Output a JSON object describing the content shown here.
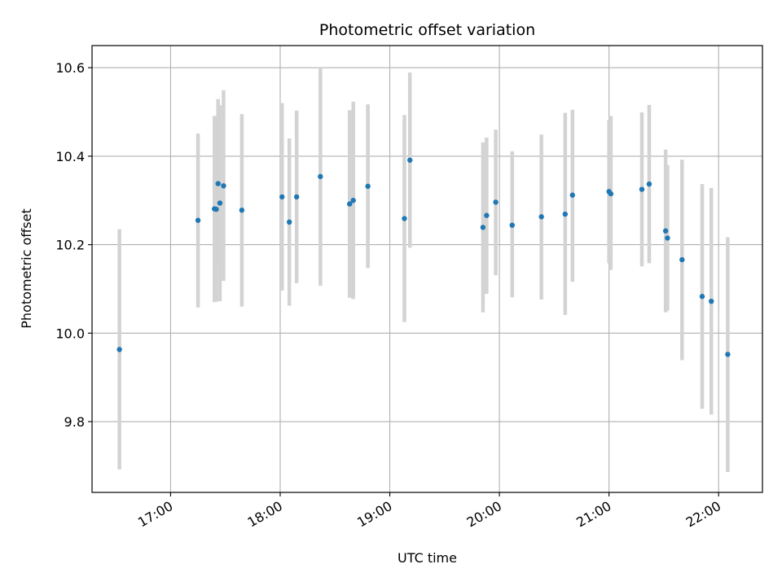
{
  "chart_data": {
    "type": "scatter",
    "title": "Photometric offset variation",
    "xlabel": "UTC time",
    "ylabel": "Photometric offset",
    "xlim": [
      "16:17",
      "22:24"
    ],
    "ylim": [
      9.64,
      10.65
    ],
    "x_ticks": [
      "17:00",
      "18:00",
      "19:00",
      "20:00",
      "21:00",
      "22:00"
    ],
    "y_ticks": [
      9.8,
      10.0,
      10.2,
      10.4,
      10.6
    ],
    "y_tick_labels": [
      "9.8",
      "10.0",
      "10.2",
      "10.4",
      "10.6"
    ],
    "grid": true,
    "point_color": "#1f77b4",
    "errorbar_color": "#d3d3d3",
    "points": [
      {
        "t": "16:32",
        "y": 9.963,
        "low": 9.692,
        "high": 10.235
      },
      {
        "t": "17:15",
        "y": 10.255,
        "low": 10.058,
        "high": 10.451
      },
      {
        "t": "17:24",
        "y": 10.281,
        "low": 10.07,
        "high": 10.491
      },
      {
        "t": "17:25",
        "y": 10.28,
        "low": 10.071,
        "high": 10.489
      },
      {
        "t": "17:26",
        "y": 10.338,
        "low": 10.146,
        "high": 10.529
      },
      {
        "t": "17:27",
        "y": 10.294,
        "low": 10.072,
        "high": 10.515
      },
      {
        "t": "17:29",
        "y": 10.333,
        "low": 10.118,
        "high": 10.549
      },
      {
        "t": "17:39",
        "y": 10.278,
        "low": 10.06,
        "high": 10.495
      },
      {
        "t": "18:01",
        "y": 10.308,
        "low": 10.096,
        "high": 10.52
      },
      {
        "t": "18:05",
        "y": 10.251,
        "low": 10.062,
        "high": 10.44
      },
      {
        "t": "18:09",
        "y": 10.308,
        "low": 10.113,
        "high": 10.503
      },
      {
        "t": "18:22",
        "y": 10.354,
        "low": 10.107,
        "high": 10.6
      },
      {
        "t": "18:38",
        "y": 10.292,
        "low": 10.08,
        "high": 10.504
      },
      {
        "t": "18:40",
        "y": 10.3,
        "low": 10.077,
        "high": 10.523
      },
      {
        "t": "18:48",
        "y": 10.332,
        "low": 10.147,
        "high": 10.517
      },
      {
        "t": "19:08",
        "y": 10.259,
        "low": 10.025,
        "high": 10.493
      },
      {
        "t": "19:11",
        "y": 10.391,
        "low": 10.193,
        "high": 10.589
      },
      {
        "t": "19:51",
        "y": 10.239,
        "low": 10.047,
        "high": 10.431
      },
      {
        "t": "19:53",
        "y": 10.266,
        "low": 10.089,
        "high": 10.442
      },
      {
        "t": "19:58",
        "y": 10.296,
        "low": 10.131,
        "high": 10.46
      },
      {
        "t": "20:07",
        "y": 10.244,
        "low": 10.081,
        "high": 10.411
      },
      {
        "t": "20:23",
        "y": 10.263,
        "low": 10.076,
        "high": 10.449
      },
      {
        "t": "20:36",
        "y": 10.269,
        "low": 10.041,
        "high": 10.498
      },
      {
        "t": "20:40",
        "y": 10.312,
        "low": 10.116,
        "high": 10.505
      },
      {
        "t": "21:00",
        "y": 10.32,
        "low": 10.158,
        "high": 10.482
      },
      {
        "t": "21:01",
        "y": 10.315,
        "low": 10.143,
        "high": 10.491
      },
      {
        "t": "21:18",
        "y": 10.325,
        "low": 10.151,
        "high": 10.499
      },
      {
        "t": "21:22",
        "y": 10.337,
        "low": 10.158,
        "high": 10.516
      },
      {
        "t": "21:31",
        "y": 10.231,
        "low": 10.047,
        "high": 10.415
      },
      {
        "t": "21:32",
        "y": 10.215,
        "low": 10.051,
        "high": 10.38
      },
      {
        "t": "21:40",
        "y": 10.166,
        "low": 9.939,
        "high": 10.392
      },
      {
        "t": "21:51",
        "y": 10.083,
        "low": 9.829,
        "high": 10.337
      },
      {
        "t": "21:56",
        "y": 10.072,
        "low": 9.816,
        "high": 10.328
      },
      {
        "t": "22:05",
        "y": 9.952,
        "low": 9.686,
        "high": 10.217
      }
    ]
  }
}
